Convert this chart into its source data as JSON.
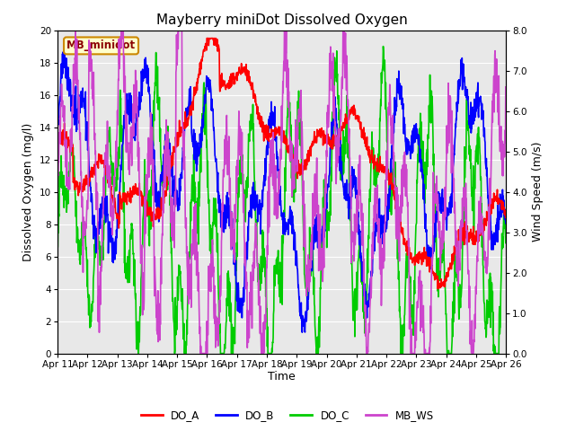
{
  "title": "Mayberry miniDot Dissolved Oxygen",
  "xlabel": "Time",
  "ylabel_left": "Dissolved Oxygen (mg/l)",
  "ylabel_right": "Wind Speed (m/s)",
  "label_box": "MB_minidot",
  "ylim_left": [
    0,
    20
  ],
  "ylim_right": [
    0.0,
    8.0
  ],
  "yticks_left": [
    0,
    2,
    4,
    6,
    8,
    10,
    12,
    14,
    16,
    18,
    20
  ],
  "yticks_right": [
    0.0,
    1.0,
    2.0,
    3.0,
    4.0,
    5.0,
    6.0,
    7.0,
    8.0
  ],
  "xtick_labels": [
    "Apr 11",
    "Apr 12",
    "Apr 13",
    "Apr 14",
    "Apr 15",
    "Apr 16",
    "Apr 17",
    "Apr 18",
    "Apr 19",
    "Apr 20",
    "Apr 21",
    "Apr 22",
    "Apr 23",
    "Apr 24",
    "Apr 25",
    "Apr 26"
  ],
  "series_colors": {
    "DO_A": "#ff0000",
    "DO_B": "#0000ff",
    "DO_C": "#00cc00",
    "MB_WS": "#cc44cc"
  },
  "bg_color": "#e8e8e8",
  "title_fontsize": 11,
  "axis_label_fontsize": 9,
  "tick_fontsize": 7.5
}
